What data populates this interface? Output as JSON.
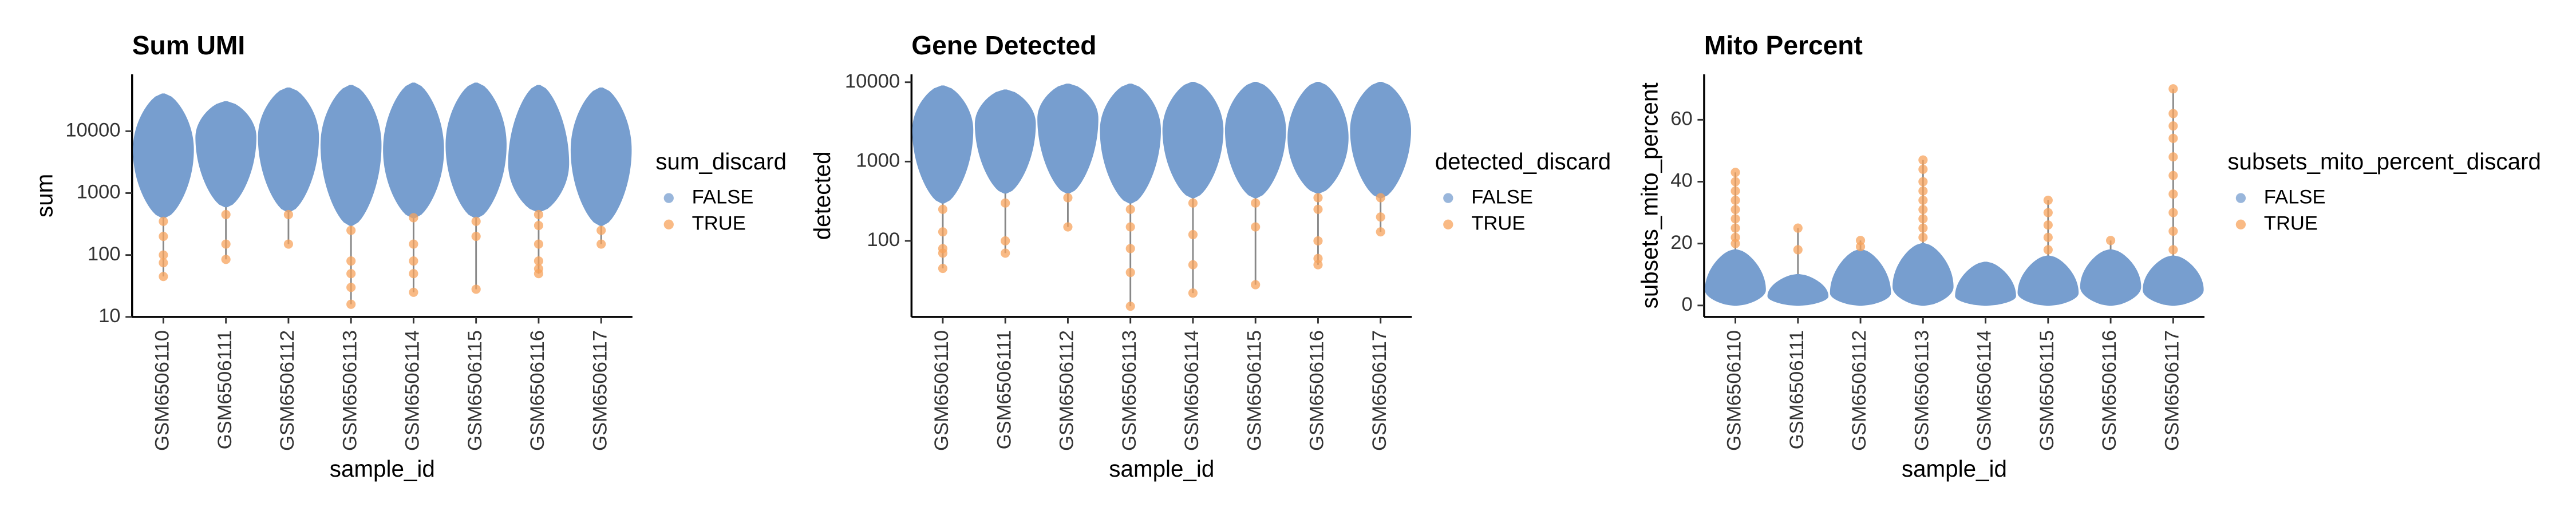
{
  "chart_data": [
    {
      "type": "violin",
      "title": "Sum UMI",
      "x_label": "sample_id",
      "y_label": "sum",
      "legend_title": "sum_discard",
      "log_scale": true,
      "categories": [
        "GSM6506110",
        "GSM6506111",
        "GSM6506112",
        "GSM6506113",
        "GSM6506114",
        "GSM6506115",
        "GSM6506116",
        "GSM6506117"
      ],
      "ylim": [
        10,
        83000
      ],
      "yticks": [
        10,
        100,
        1000,
        10000
      ],
      "series": [
        {
          "name": "FALSE",
          "color": "#779ecf",
          "values": [
            [
              400,
              5000,
              40000
            ],
            [
              600,
              8000,
              30000
            ],
            [
              500,
              8000,
              50000
            ],
            [
              300,
              6000,
              55000
            ],
            [
              400,
              5000,
              60000
            ],
            [
              400,
              6000,
              60000
            ],
            [
              500,
              3000,
              55000
            ],
            [
              300,
              5000,
              50000
            ]
          ]
        },
        {
          "name": "TRUE",
          "color": "#f7a35c",
          "values": [
            [
              350,
              200,
              100,
              75,
              45
            ],
            [
              450,
              150,
              85
            ],
            [
              450,
              150
            ],
            [
              250,
              80,
              50,
              30,
              16
            ],
            [
              400,
              150,
              80,
              50,
              25
            ],
            [
              350,
              200,
              28
            ],
            [
              450,
              300,
              150,
              80,
              60,
              50
            ],
            [
              250,
              150
            ]
          ]
        }
      ]
    },
    {
      "type": "violin",
      "title": "Gene Detected",
      "x_label": "sample_id",
      "y_label": "detected",
      "legend_title": "detected_discard",
      "log_scale": true,
      "categories": [
        "GSM6506110",
        "GSM6506111",
        "GSM6506112",
        "GSM6506113",
        "GSM6506114",
        "GSM6506115",
        "GSM6506116",
        "GSM6506117"
      ],
      "ylim": [
        11,
        12600
      ],
      "yticks": [
        100,
        1000,
        10000
      ],
      "series": [
        {
          "name": "FALSE",
          "color": "#779ecf",
          "values": [
            [
              300,
              2500,
              9000
            ],
            [
              400,
              3000,
              8000
            ],
            [
              400,
              3500,
              9500
            ],
            [
              300,
              2500,
              9500
            ],
            [
              350,
              2500,
              10000
            ],
            [
              350,
              2500,
              10000
            ],
            [
              400,
              2000,
              10000
            ],
            [
              350,
              2500,
              10000
            ]
          ]
        },
        {
          "name": "TRUE",
          "color": "#f7a35c",
          "values": [
            [
              250,
              130,
              80,
              70,
              45
            ],
            [
              300,
              100,
              70
            ],
            [
              350,
              150
            ],
            [
              250,
              150,
              80,
              40,
              15
            ],
            [
              300,
              120,
              50,
              22
            ],
            [
              300,
              150,
              28
            ],
            [
              350,
              250,
              100,
              60,
              50
            ],
            [
              350,
              200,
              130
            ]
          ]
        }
      ]
    },
    {
      "type": "violin",
      "title": "Mito Percent",
      "x_label": "sample_id",
      "y_label": "subsets_mito_percent",
      "legend_title": "subsets_mito_percent_discard",
      "log_scale": false,
      "categories": [
        "GSM6506110",
        "GSM6506111",
        "GSM6506112",
        "GSM6506113",
        "GSM6506114",
        "GSM6506115",
        "GSM6506116",
        "GSM6506117"
      ],
      "ylim": [
        -3.7,
        74.7
      ],
      "yticks": [
        0,
        20,
        40,
        60
      ],
      "series": [
        {
          "name": "FALSE",
          "color": "#779ecf",
          "values": [
            [
              0,
              5,
              18
            ],
            [
              0,
              3,
              10
            ],
            [
              0,
              4,
              18
            ],
            [
              0,
              6,
              20
            ],
            [
              0,
              3,
              14
            ],
            [
              0,
              4,
              16
            ],
            [
              0,
              6,
              18
            ],
            [
              0,
              5,
              16
            ]
          ]
        },
        {
          "name": "TRUE",
          "color": "#f7a35c",
          "values": [
            [
              20,
              22,
              25,
              28,
              31,
              34,
              37,
              40,
              43
            ],
            [
              18,
              25
            ],
            [
              19,
              21
            ],
            [
              22,
              25,
              28,
              31,
              34,
              37,
              40,
              44,
              47
            ],
            [],
            [
              18,
              22,
              26,
              30,
              34
            ],
            [
              21
            ],
            [
              18,
              24,
              30,
              36,
              42,
              48,
              54,
              58,
              62,
              70
            ]
          ]
        }
      ]
    }
  ]
}
